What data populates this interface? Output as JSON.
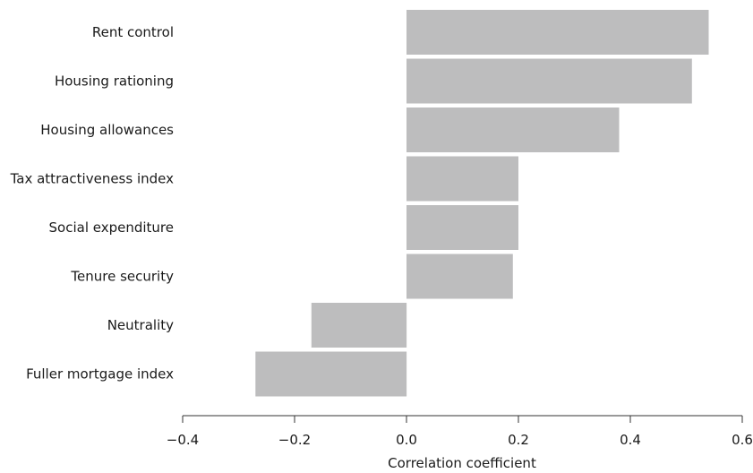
{
  "chart_data": {
    "type": "bar",
    "orientation": "horizontal",
    "categories": [
      "Rent control",
      "Housing rationing",
      "Housing allowances",
      "Tax attractiveness index",
      "Social expenditure",
      "Tenure security",
      "Neutrality",
      "Fuller mortgage index"
    ],
    "values": [
      0.54,
      0.51,
      0.38,
      0.2,
      0.2,
      0.19,
      -0.17,
      -0.27
    ],
    "title": "",
    "xlabel": "Correlation coefficient",
    "ylabel": "",
    "xlim": [
      -0.4,
      0.6
    ],
    "xticks": [
      -0.4,
      -0.2,
      0.0,
      0.2,
      0.4,
      0.6
    ],
    "xtick_labels": [
      "−0.4",
      "−0.2",
      "0.0",
      "0.2",
      "0.4",
      "0.6"
    ],
    "grid": false,
    "bar_color": "#bdbdbe"
  }
}
